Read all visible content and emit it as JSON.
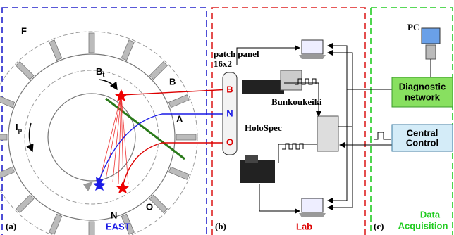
{
  "panel_a": {
    "label": "(a)",
    "title": "EAST",
    "coil_labels": [
      "F",
      "B",
      "A",
      "O",
      "N"
    ],
    "field": {
      "symbol": "B",
      "subscript": "t"
    },
    "current": {
      "symbol": "I",
      "subscript": "p"
    }
  },
  "panel_b": {
    "label": "(b)",
    "title": "Lab",
    "patch_panel": [
      "patch panel",
      "16x2"
    ],
    "ports": [
      "B",
      "N",
      "O"
    ],
    "devices": [
      "Bunkoukeiki",
      "HoloSpec"
    ]
  },
  "panel_c": {
    "label": "(c)",
    "title": [
      "Data",
      "Acquisition"
    ],
    "pc": "PC",
    "boxes": [
      [
        "Diagnostic",
        "network"
      ],
      [
        "Central",
        "Control"
      ]
    ]
  }
}
